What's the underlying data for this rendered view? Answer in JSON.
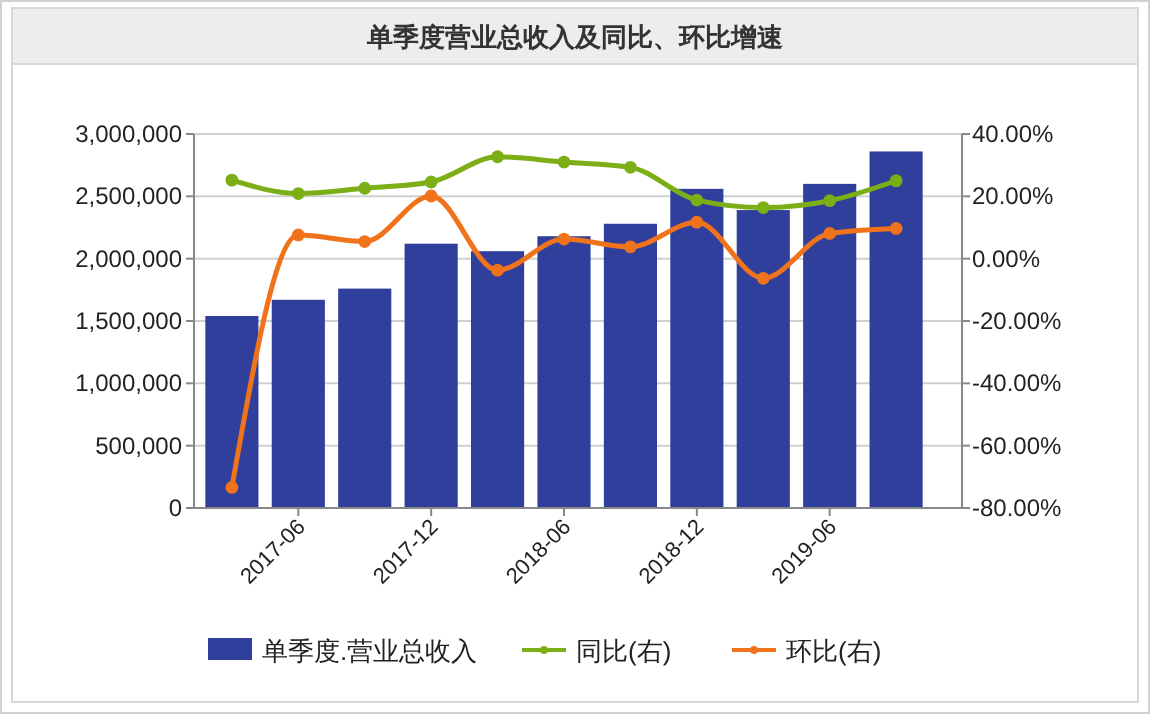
{
  "chart_data": {
    "type": "bar",
    "title": "单季度营业总收入及同比、环比增速",
    "categories": [
      null,
      "2017-06",
      null,
      "2017-12",
      null,
      "2018-06",
      null,
      "2018-12",
      null,
      "2019-06",
      null
    ],
    "series": [
      {
        "name": "单季度.营业总收入",
        "color": "#313f9c",
        "values": [
          1540000,
          1670000,
          1760000,
          2120000,
          2060000,
          2180000,
          2280000,
          2560000,
          2390000,
          2600000,
          2860000
        ]
      },
      {
        "name": "同比(右)",
        "type": "line",
        "axis": "y2",
        "color": "#7cae16",
        "values": [
          25.2,
          20.9,
          22.6,
          24.6,
          32.7,
          31.0,
          29.3,
          18.8,
          16.4,
          18.6,
          25.0
        ]
      },
      {
        "name": "环比(右)",
        "type": "line",
        "axis": "y2",
        "color": "#f0731c",
        "values": [
          -73.4,
          7.6,
          5.5,
          20.1,
          -3.7,
          6.3,
          3.8,
          11.7,
          -6.3,
          8.1,
          9.7
        ]
      }
    ],
    "ylim": [
      0,
      3000000
    ],
    "yticks": [
      {
        "value": 0,
        "label": "0"
      },
      {
        "value": 500000,
        "label": "500,000"
      },
      {
        "value": 1000000,
        "label": "1,000,000"
      },
      {
        "value": 1500000,
        "label": "1,500,000"
      },
      {
        "value": 2000000,
        "label": "2,000,000"
      },
      {
        "value": 2500000,
        "label": "2,500,000"
      },
      {
        "value": 3000000,
        "label": "3,000,000"
      }
    ],
    "y2lim": [
      -80,
      40
    ],
    "y2ticks": [
      {
        "value": -80,
        "label": "-80.00%"
      },
      {
        "value": -60,
        "label": "-60.00%"
      },
      {
        "value": -40,
        "label": "-40.00%"
      },
      {
        "value": -20,
        "label": "-20.00%"
      },
      {
        "value": 0,
        "label": "0.00%"
      },
      {
        "value": 20,
        "label": "20.00%"
      },
      {
        "value": 40,
        "label": "40.00%"
      }
    ],
    "grid": "y",
    "legend": "bottom",
    "marker": "circle"
  }
}
